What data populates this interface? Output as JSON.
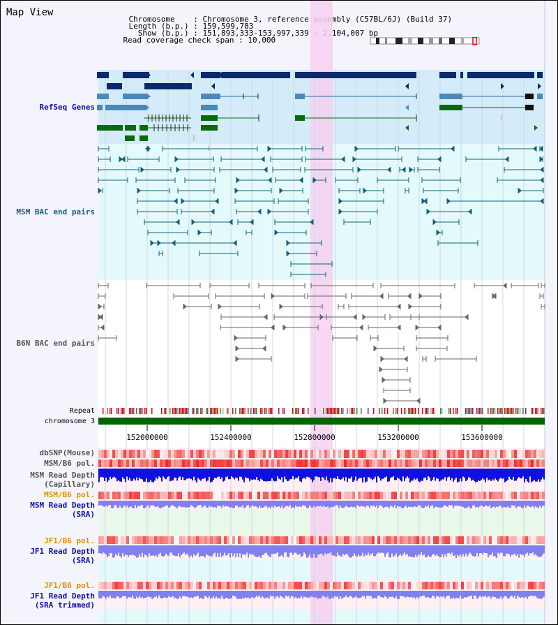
{
  "view": {
    "title": "Map View"
  },
  "header": {
    "chromosome_label": "Chromosome",
    "chromosome_value": "Chromosome 3, reference assembly (C57BL/6J) (Build 37)",
    "length_label": "Length (b.p.)",
    "length_value": "159,599,783",
    "show_label": "Show (b.p.)",
    "show_value": "151,893,333-153,997,339 : 2,104,007 bp",
    "coverage_label": "Read coverage check span",
    "coverage_value": "10,000"
  },
  "tracks": {
    "refseq": "RefSeq Genes",
    "msm_bac": "MSM BAC end pairs",
    "b6n_bac": "B6N BAC end pairs",
    "repeat": "Repeat",
    "chromosome": "chromosome 3",
    "dbsnp": "dbSNP(Mouse)",
    "msm_b6_pol_1": "MSM/B6 pol.",
    "msm_depth_cap_1": "MSM Read Depth",
    "msm_depth_cap_2": "(Capillary)",
    "msm_b6_pol_2": "MSM/B6 pol.",
    "msm_depth_sra_1": "MSM Read Depth",
    "msm_depth_sra_2": "(SRA)",
    "jf1_b6_pol_1": "JF1/B6 pol.",
    "jf1_depth_sra_1": "JF1 Read Depth",
    "jf1_depth_sra_2": "(SRA)",
    "jf1_b6_pol_2": "JF1/B6 pol.",
    "jf1_depth_trim_1": "JF1 Read Depth",
    "jf1_depth_trim_2": "(SRA trimmed)"
  },
  "axis": {
    "ticks": [
      "152000000",
      "152400000",
      "152800000",
      "153200000",
      "153600000"
    ]
  },
  "colors": {
    "refseq_dark": "#0a2a6a",
    "refseq_light": "#4a8aba",
    "refseq_green": "#0a6a0a",
    "bac_teal": "#10607a",
    "bac_gray": "#666666",
    "highlight": "#f6d6f0",
    "chromosome_bar": "#006600",
    "snp": "#f04040",
    "depth_dark_blue": "#1010e0",
    "depth_light_blue": "#8080f0"
  }
}
